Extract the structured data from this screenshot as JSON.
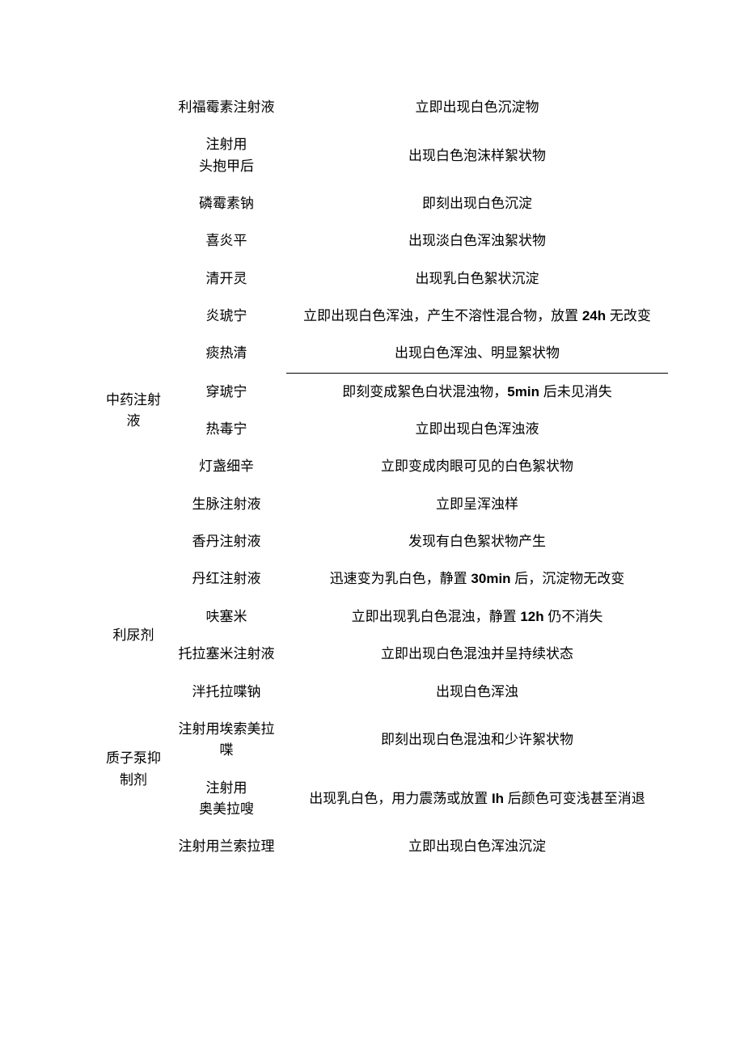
{
  "rows": [
    {
      "category": "",
      "drug": "利福霉素注射液",
      "result": "立即出现白色沉淀物"
    },
    {
      "category": "",
      "drug": "注射用\n头抱甲后",
      "result": "出现白色泡沫样絮状物"
    },
    {
      "category": "",
      "drug": "磷霉素钠",
      "result": "即刻出现白色沉淀"
    },
    {
      "category": "",
      "drug": "喜炎平",
      "result": "出现淡白色浑浊絮状物"
    },
    {
      "category": "",
      "drug": "清开灵",
      "result": "出现乳白色絮状沉淀"
    },
    {
      "category": "",
      "drug": "炎琥宁",
      "result": "立即出现白色浑浊，产生不溶性混合物，放置 <b>24h</b> 无改变"
    },
    {
      "category": "",
      "drug": "痰热清",
      "result": "出现白色浑浊、明显絮状物",
      "hr_after": true
    },
    {
      "category": "中药注射液",
      "drug": "穿琥宁",
      "result": "即刻变成絮色白状混浊物，<b>5min</b> 后未见消失",
      "cat_rowspan": 2
    },
    {
      "category": null,
      "drug": "热毒宁",
      "result": "立即出现白色浑浊液"
    },
    {
      "category": "",
      "drug": "灯盏细辛",
      "result": "立即变成肉眼可见的白色絮状物"
    },
    {
      "category": "",
      "drug": "生脉注射液",
      "result": "立即呈浑浊样"
    },
    {
      "category": "",
      "drug": "香丹注射液",
      "result": "发现有白色絮状物产生"
    },
    {
      "category": "",
      "drug": "丹红注射液",
      "result": "迅速变为乳白色，静置 <b>30min</b> 后，沉淀物无改变"
    },
    {
      "category": "利尿剂",
      "drug": "呋塞米",
      "result": "立即出现乳白色混浊，静置 <b>12h</b> 仍不消失",
      "cat_rowspan": 2
    },
    {
      "category": null,
      "drug": "托拉塞米注射液",
      "result": "立即出现白色混浊并呈持续状态"
    },
    {
      "category": "",
      "drug": "泮托拉喋钠",
      "result": "出现白色浑浊"
    },
    {
      "category": "质子泵抑制剂",
      "drug": "注射用埃索美拉喋",
      "result": "即刻出现白色混浊和少许絮状物",
      "cat_rowspan": 2
    },
    {
      "category": null,
      "drug": "注射用\n奥美拉嗖",
      "result": "出现乳白色，用力震荡或放置 <b>Ih</b> 后颜色可变浅甚至消退"
    },
    {
      "category": "",
      "drug": "注射用兰索拉理",
      "result": "立即出现白色浑浊沉淀"
    }
  ]
}
